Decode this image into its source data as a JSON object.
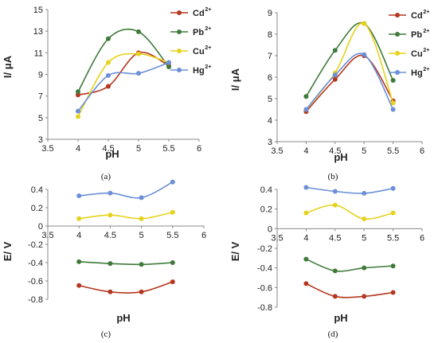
{
  "chart_data": [
    {
      "type": "line",
      "panel_label": "(a)",
      "ylabel": "I/ μA",
      "xlabel": "pH",
      "xlim": [
        3.5,
        6
      ],
      "ylim": [
        3,
        15
      ],
      "xticks": [
        "3.5",
        "4",
        "4.5",
        "5",
        "5.5",
        "6"
      ],
      "yticks": [
        "3",
        "5",
        "7",
        "9",
        "11",
        "13",
        "15"
      ],
      "legend_position": "top-right",
      "x": [
        4,
        4.5,
        5,
        5.5
      ],
      "series": [
        {
          "name": "Cd",
          "sup": "2+",
          "color": "#b5371f",
          "values": [
            7.1,
            7.9,
            11.0,
            9.8
          ]
        },
        {
          "name": "Pb",
          "sup": "2+",
          "color": "#3f7a3a",
          "values": [
            7.4,
            12.3,
            12.95,
            9.7
          ]
        },
        {
          "name": "Cu",
          "sup": "2+",
          "color": "#e6d21c",
          "values": [
            5.1,
            10.1,
            10.9,
            10.1
          ]
        },
        {
          "name": "Hg",
          "sup": "2+",
          "color": "#6b8fd8",
          "values": [
            5.6,
            8.9,
            9.1,
            10.1
          ]
        }
      ]
    },
    {
      "type": "line",
      "panel_label": "(b)",
      "ylabel": "I/ μA",
      "xlabel": "pH",
      "xlim": [
        3.5,
        6
      ],
      "ylim": [
        3,
        9
      ],
      "xticks": [
        "3.5",
        "4",
        "4.5",
        "5",
        "5.5",
        "6"
      ],
      "yticks": [
        "3",
        "4",
        "5",
        "6",
        "7",
        "8",
        "9"
      ],
      "legend_position": "top-right",
      "x": [
        4,
        4.5,
        5,
        5.5
      ],
      "series": [
        {
          "name": "Cd",
          "sup": "2+",
          "color": "#b5371f",
          "values": [
            4.4,
            5.9,
            7.0,
            4.9
          ]
        },
        {
          "name": "Pb",
          "sup": "2+",
          "color": "#3f7a3a",
          "values": [
            5.1,
            7.25,
            8.5,
            5.85
          ]
        },
        {
          "name": "Cu",
          "sup": "2+",
          "color": "#e6d21c",
          "values": [
            4.5,
            6.2,
            8.5,
            4.8
          ]
        },
        {
          "name": "Hg",
          "sup": "2+",
          "color": "#6b8fd8",
          "values": [
            4.5,
            6.1,
            7.05,
            4.5
          ]
        }
      ]
    },
    {
      "type": "line",
      "panel_label": "(c)",
      "ylabel": "E/ V",
      "xlabel": "pH",
      "xlim": [
        3.5,
        6
      ],
      "ylim": [
        -0.8,
        0.4
      ],
      "xticks": [
        "3.5",
        "4",
        "4.5",
        "5",
        "5.5",
        "6"
      ],
      "yticks": [
        "-0.8",
        "-0.6",
        "-0.4",
        "-0.2",
        "0",
        "0.2",
        "0.4"
      ],
      "x": [
        4,
        4.5,
        5,
        5.5
      ],
      "series": [
        {
          "color": "#6b8fd8",
          "values": [
            0.33,
            0.36,
            0.31,
            0.48
          ]
        },
        {
          "color": "#e6d21c",
          "values": [
            0.08,
            0.12,
            0.08,
            0.15
          ]
        },
        {
          "color": "#3f7a3a",
          "values": [
            -0.39,
            -0.41,
            -0.42,
            -0.4
          ]
        },
        {
          "color": "#b5371f",
          "values": [
            -0.65,
            -0.72,
            -0.72,
            -0.61
          ]
        }
      ]
    },
    {
      "type": "line",
      "panel_label": "(d)",
      "ylabel": "E/ V",
      "xlabel": "pH",
      "xlim": [
        3.5,
        6
      ],
      "ylim": [
        -0.8,
        0.4
      ],
      "xticks": [
        "3.5",
        "4",
        "4.5",
        "5",
        "5.5",
        "6"
      ],
      "yticks": [
        "-0.8",
        "-0.6",
        "-0.4",
        "-0.2",
        "0",
        "0.2",
        "0.4"
      ],
      "x": [
        4,
        4.5,
        5,
        5.5
      ],
      "series": [
        {
          "color": "#6b8fd8",
          "values": [
            0.42,
            0.38,
            0.36,
            0.41
          ]
        },
        {
          "color": "#e6d21c",
          "values": [
            0.16,
            0.24,
            0.1,
            0.16
          ]
        },
        {
          "color": "#3f7a3a",
          "values": [
            -0.31,
            -0.43,
            -0.4,
            -0.38
          ]
        },
        {
          "color": "#b5371f",
          "values": [
            -0.56,
            -0.69,
            -0.69,
            -0.65
          ]
        }
      ]
    }
  ]
}
